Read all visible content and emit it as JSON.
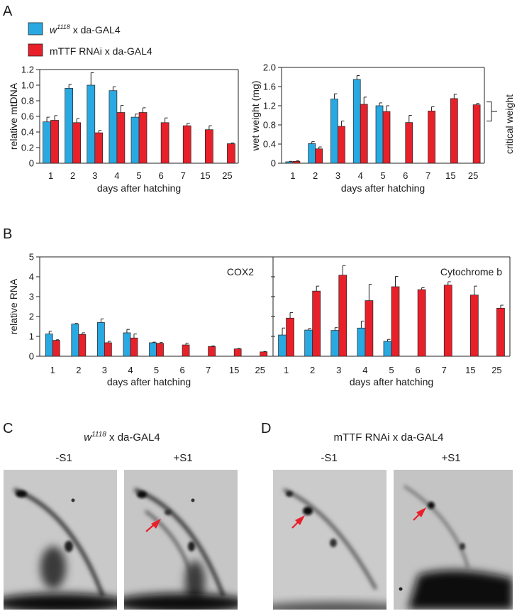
{
  "figure": {
    "panels": {
      "A": "A",
      "B": "B",
      "C": "C",
      "D": "D"
    },
    "legend": [
      {
        "italic": "w",
        "sup": "1118",
        "rest": " x da-GAL4",
        "color": "#29a9e1"
      },
      {
        "text": "mTTF RNAi x da-GAL4",
        "color": "#e8202a"
      }
    ],
    "gels": {
      "C": {
        "italic": "w",
        "sup": "1118",
        "rest": " x da-GAL4",
        "lanes": [
          "-S1",
          "+S1"
        ]
      },
      "D": {
        "title": "mTTF RNAi x da-GAL4",
        "lanes": [
          "-S1",
          "+S1"
        ]
      }
    }
  },
  "colors": {
    "control": "#29a9e1",
    "rnai": "#e8202a",
    "arrow": "#e8202a"
  },
  "chart_data": [
    {
      "id": "A-left",
      "type": "bar",
      "ylabel": "relative mtDNA",
      "xlabel": "days after hatching",
      "categories": [
        "1",
        "2",
        "3",
        "4",
        "5",
        "6",
        "7",
        "15",
        "25"
      ],
      "ylim": [
        0,
        1.2
      ],
      "yticks": [
        0,
        0.2,
        0.4,
        0.6,
        0.8,
        1.0,
        1.2
      ],
      "ytick_labels": [
        "0",
        "0.2",
        "0.4",
        "0.6",
        "0.8",
        "1.0",
        "1.2"
      ],
      "series": [
        {
          "name": "w1118 x da-GAL4",
          "values": [
            0.53,
            0.96,
            1.0,
            0.93,
            0.59,
            null,
            null,
            null,
            null
          ],
          "errors": [
            0.06,
            0.05,
            0.16,
            0.05,
            0.04,
            null,
            null,
            null,
            null
          ]
        },
        {
          "name": "mTTF RNAi x da-GAL4",
          "values": [
            0.55,
            0.52,
            0.39,
            0.65,
            0.65,
            0.52,
            0.48,
            0.43,
            0.25
          ],
          "errors": [
            0.06,
            0.05,
            0.03,
            0.09,
            0.06,
            0.06,
            0.03,
            0.05,
            0.01
          ]
        }
      ]
    },
    {
      "id": "A-right",
      "type": "bar",
      "ylabel": "wet weight (mg)",
      "xlabel": "days after hatching",
      "side_label": "critical weight",
      "critical_range": [
        0.88,
        1.28
      ],
      "categories": [
        "1",
        "2",
        "3",
        "4",
        "5",
        "6",
        "7",
        "15",
        "25"
      ],
      "ylim": [
        0,
        2.0
      ],
      "yticks": [
        0,
        0.4,
        0.8,
        1.2,
        1.6,
        2.0
      ],
      "ytick_labels": [
        "0",
        "0.4",
        "0.8",
        "1.2",
        "1.6",
        "2.0"
      ],
      "series": [
        {
          "name": "w1118 x da-GAL4",
          "values": [
            0.03,
            0.41,
            1.34,
            1.75,
            1.2,
            null,
            null,
            null,
            null
          ],
          "errors": [
            0.01,
            0.04,
            0.11,
            0.08,
            0.06,
            null,
            null,
            null,
            null
          ]
        },
        {
          "name": "mTTF RNAi x da-GAL4",
          "values": [
            0.04,
            0.3,
            0.77,
            1.23,
            1.08,
            0.85,
            1.09,
            1.35,
            1.22
          ],
          "errors": [
            0.01,
            0.04,
            0.11,
            0.15,
            0.12,
            0.15,
            0.09,
            0.09,
            0.03
          ]
        }
      ]
    },
    {
      "id": "B-left",
      "type": "bar",
      "title": "COX2",
      "ylabel": "relative RNA",
      "xlabel": "days after hatching",
      "categories": [
        "1",
        "2",
        "3",
        "4",
        "5",
        "6",
        "7",
        "15",
        "25"
      ],
      "ylim": [
        0,
        5
      ],
      "yticks": [
        0,
        1,
        2,
        3,
        4,
        5
      ],
      "ytick_labels": [
        "0",
        "1",
        "2",
        "3",
        "4",
        "5"
      ],
      "series": [
        {
          "name": "w1118 x da-GAL4",
          "values": [
            1.12,
            1.62,
            1.7,
            1.18,
            0.68,
            null,
            null,
            null,
            null
          ],
          "errors": [
            0.14,
            0.03,
            0.18,
            0.17,
            0.03,
            null,
            null,
            null,
            null
          ]
        },
        {
          "name": "mTTF RNAi x da-GAL4",
          "values": [
            0.8,
            1.1,
            0.68,
            0.92,
            0.65,
            0.57,
            0.49,
            0.37,
            0.22
          ],
          "errors": [
            0.03,
            0.08,
            0.07,
            0.2,
            0.04,
            0.09,
            0.03,
            0.02,
            0.02
          ]
        }
      ]
    },
    {
      "id": "B-right",
      "type": "bar",
      "title": "Cytochrome b",
      "xlabel": "days after hatching",
      "categories": [
        "1",
        "2",
        "3",
        "4",
        "5",
        "6",
        "7",
        "15",
        "25"
      ],
      "ylim": [
        0,
        5
      ],
      "series": [
        {
          "name": "w1118 x da-GAL4",
          "values": [
            1.07,
            1.32,
            1.3,
            1.42,
            0.75,
            null,
            null,
            null,
            null
          ],
          "errors": [
            0.35,
            0.08,
            0.14,
            0.35,
            0.1,
            null,
            null,
            null,
            null
          ]
        },
        {
          "name": "mTTF RNAi x da-GAL4",
          "values": [
            1.92,
            3.28,
            4.08,
            2.8,
            3.5,
            3.35,
            3.58,
            3.08,
            2.42
          ],
          "errors": [
            0.28,
            0.25,
            0.48,
            0.82,
            0.52,
            0.1,
            0.17,
            0.45,
            0.15
          ]
        }
      ]
    }
  ]
}
